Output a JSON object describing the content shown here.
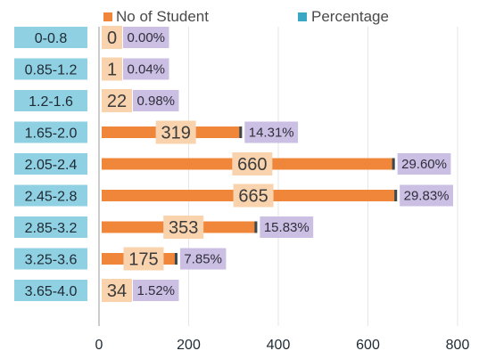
{
  "chart_data": {
    "type": "bar",
    "orientation": "horizontal",
    "categories": [
      "0-0.8",
      "0.85-1.2",
      "1.2-1.6",
      "1.65-2.0",
      "2.05-2.4",
      "2.45-2.8",
      "2.85-3.2",
      "3.25-3.6",
      "3.65-4.0"
    ],
    "series": [
      {
        "name": "No of Student",
        "values": [
          0,
          1,
          22,
          319,
          660,
          665,
          353,
          175,
          34
        ]
      }
    ],
    "percentages": [
      "0.00%",
      "0.04%",
      "0.98%",
      "14.31%",
      "29.60%",
      "29.83%",
      "15.83%",
      "7.85%",
      "1.52%"
    ],
    "legend": [
      {
        "label": "No of Student",
        "color": "#f0863a"
      },
      {
        "label": "Percentage",
        "color": "#3aa7c4"
      }
    ],
    "legend_position": "top",
    "xticks": [
      "0",
      "200",
      "400",
      "600",
      "800"
    ],
    "xlim": [
      0,
      800
    ],
    "grid": true,
    "colors": {
      "bar": "#f0863a",
      "bar_edge": "#3a4a50",
      "category_box": "#8fd0e2",
      "count_box": "#f9d3ae",
      "pct_box": "#cbbfe4",
      "grid": "#e6e6e6",
      "axis": "#9a9a9a"
    }
  }
}
